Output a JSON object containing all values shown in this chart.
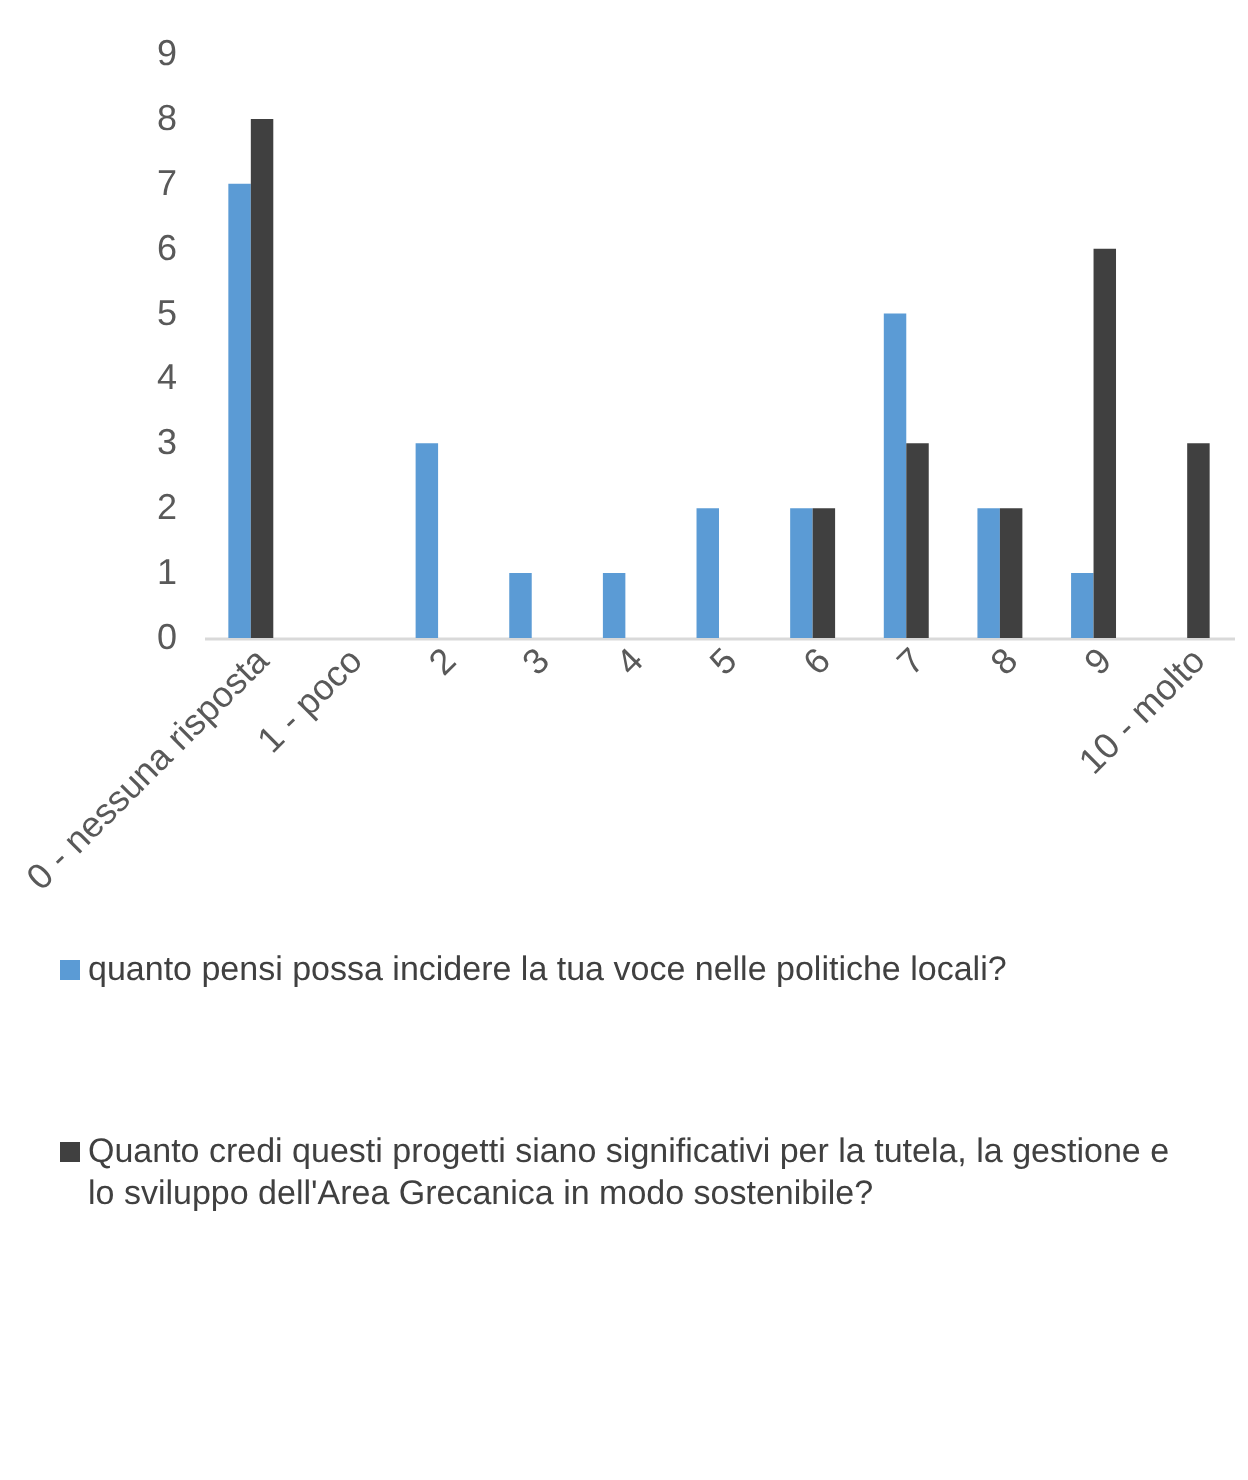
{
  "chart_data": {
    "type": "bar",
    "categories": [
      "0 - nessuna risposta",
      "1 - poco",
      "2",
      "3",
      "4",
      "5",
      "6",
      "7",
      "8",
      "9",
      "10 - molto"
    ],
    "series": [
      {
        "name": "quanto pensi possa incidere la tua voce nelle politiche locali?",
        "color": "#5b9bd5",
        "values": [
          7,
          0,
          3,
          1,
          1,
          2,
          2,
          5,
          2,
          1,
          0
        ]
      },
      {
        "name": "Quanto credi questi progetti siano significativi per la tutela, la gestione e lo sviluppo dell'Area Grecanica in modo sostenibile?",
        "color": "#404040",
        "values": [
          8,
          0,
          0,
          0,
          0,
          0,
          2,
          3,
          2,
          6,
          3
        ]
      }
    ],
    "ylim": [
      0,
      9
    ],
    "yticks": [
      0,
      1,
      2,
      3,
      4,
      5,
      6,
      7,
      8,
      9
    ],
    "grid": false,
    "legend": "bottom"
  }
}
